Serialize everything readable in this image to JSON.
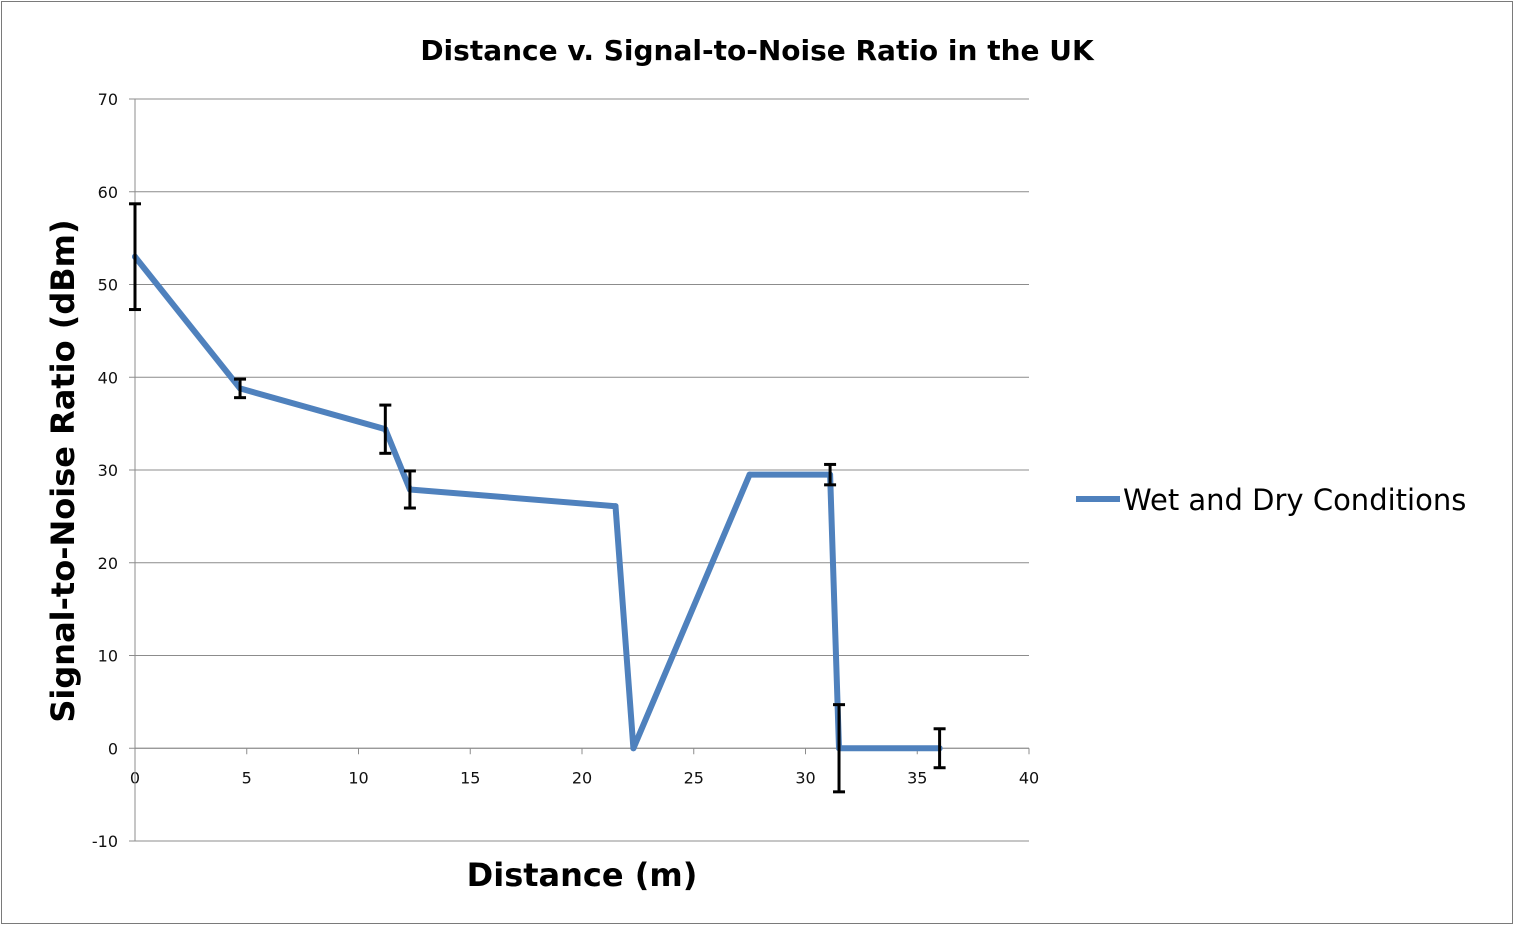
{
  "chart_data": {
    "type": "line",
    "title": "Distance v. Signal-to-Noise Ratio in the UK",
    "xlabel": "Distance (m)",
    "ylabel": "Signal-to-Noise Ratio (dBm)",
    "xlim": [
      0,
      40
    ],
    "ylim": [
      -10,
      70
    ],
    "x_ticks": [
      0,
      5,
      10,
      15,
      20,
      25,
      30,
      35,
      40
    ],
    "y_ticks": [
      70,
      60,
      50,
      40,
      30,
      20,
      10,
      0,
      -10
    ],
    "grid": "horizontal",
    "legend_position": "right",
    "series": [
      {
        "name": "Wet and Dry Conditions",
        "color": "#4F81BD",
        "points": [
          {
            "x": 0,
            "y": 53,
            "err": 5.7
          },
          {
            "x": 4.7,
            "y": 38.8,
            "err": 1.0
          },
          {
            "x": 11.2,
            "y": 34.4,
            "err": 2.6
          },
          {
            "x": 12.3,
            "y": 27.9,
            "err": 2.0
          },
          {
            "x": 21.5,
            "y": 26.1,
            "err": null
          },
          {
            "x": 22.3,
            "y": 0,
            "err": null
          },
          {
            "x": 27.5,
            "y": 29.5,
            "err": null
          },
          {
            "x": 31.1,
            "y": 29.5,
            "err": 1.1
          },
          {
            "x": 31.5,
            "y": 0,
            "err": 4.7
          },
          {
            "x": 36,
            "y": 0,
            "err": 2.1
          }
        ]
      }
    ]
  }
}
